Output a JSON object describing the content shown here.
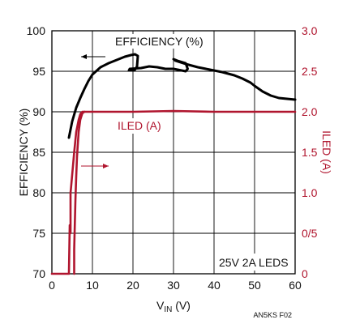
{
  "chart_data": {
    "type": "line",
    "xlabel": "V",
    "xlabel_sub": "IN",
    "xlabel_unit": " (V)",
    "ylabel_left": "EFFICIENCY (%)",
    "ylabel_right": "ILED (A)",
    "xlim": [
      0,
      60
    ],
    "ylim_left": [
      70,
      100
    ],
    "ylim_right": [
      0,
      3.0
    ],
    "x_ticks": [
      "0",
      "10",
      "20",
      "30",
      "40",
      "50",
      "60"
    ],
    "x_tick_values": [
      0,
      10,
      20,
      30,
      40,
      50,
      60
    ],
    "y_left_ticks": [
      "70",
      "75",
      "80",
      "85",
      "90",
      "95",
      "100"
    ],
    "y_left_tick_values": [
      70,
      75,
      80,
      85,
      90,
      95,
      100
    ],
    "y_right_ticks": [
      "0",
      "0/5",
      "1.0",
      "1.5",
      "2.0",
      "2.5",
      "3.0"
    ],
    "y_right_tick_values": [
      0,
      0.5,
      1.0,
      1.5,
      2.0,
      2.5,
      3.0
    ],
    "grid": true,
    "series": [
      {
        "name": "EFFICIENCY (%)",
        "axis": "left",
        "color": "#000000",
        "x": [
          4.2,
          5,
          6,
          7,
          8,
          9,
          10,
          12,
          14,
          16,
          18,
          19.5,
          20.5,
          21.2,
          21,
          20.5,
          19,
          19.2,
          22,
          24,
          26,
          28,
          30,
          31,
          32,
          33,
          33.5,
          33,
          31,
          30,
          30.5,
          33,
          36,
          39,
          42,
          45,
          47,
          49,
          50,
          52,
          54,
          56,
          58,
          60
        ],
        "y": [
          86.8,
          88.8,
          90.5,
          91.7,
          92.8,
          93.8,
          94.6,
          95.5,
          96,
          96.4,
          96.8,
          97,
          97.1,
          96.9,
          95.6,
          95.2,
          95.1,
          95.3,
          95.4,
          95.6,
          95.5,
          95.3,
          95.3,
          95.2,
          95.1,
          95,
          95.3,
          96,
          96.3,
          96.5,
          96.3,
          95.9,
          95.5,
          95.2,
          94.9,
          94.5,
          94.1,
          93.6,
          93.2,
          92.5,
          92,
          91.7,
          91.6,
          91.5
        ]
      },
      {
        "name": "ILED (A)",
        "axis": "right",
        "color": "#b0152e",
        "x": [
          0,
          4.2,
          4.4,
          4.6,
          4.6,
          4.7,
          5.5,
          6,
          6.6,
          7,
          7.5,
          7.8,
          8.5,
          10,
          20,
          30,
          40,
          50,
          60
        ],
        "y": [
          0,
          0,
          0.6,
          0.5,
          1.0,
          1.05,
          1.5,
          1.75,
          1.9,
          1.97,
          2.0,
          2.0,
          2.0,
          2.0,
          2.0,
          2.01,
          2.0,
          2.0,
          2.0
        ]
      },
      {
        "name": "ILED (A) trace 2",
        "axis": "right",
        "color": "#b0152e",
        "x": [
          5.5,
          5.5,
          5.8,
          6.0,
          6.2,
          6.6,
          7.0,
          7.5,
          8.0
        ],
        "y": [
          0,
          0.3,
          0.9,
          1.2,
          1.45,
          1.75,
          1.9,
          1.98,
          2.0
        ]
      }
    ],
    "annotations": {
      "efficiency_label": "EFFICIENCY (%)",
      "iled_label": "ILED (A)",
      "condition": "25V 2A LEDS",
      "figure_id": "AN5KS F02"
    },
    "colors": {
      "efficiency": "#000000",
      "iled": "#b0152e",
      "grid": "#000000",
      "frame": "#000000"
    }
  }
}
